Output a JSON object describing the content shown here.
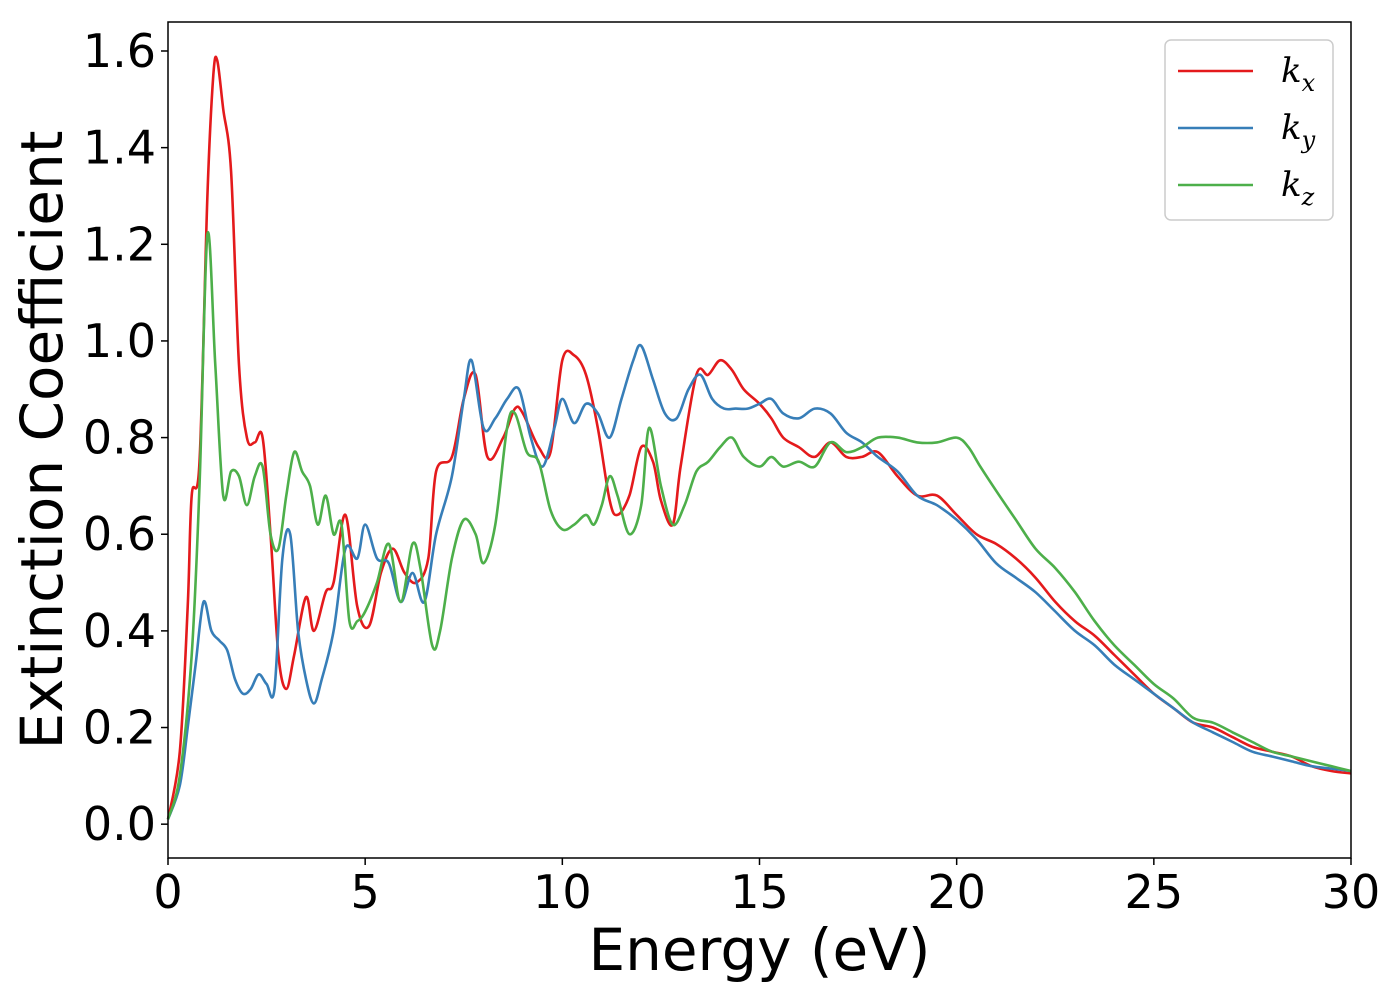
{
  "chart_data": {
    "type": "line",
    "xlabel": "Energy (eV)",
    "ylabel": "Extinction Coefficient",
    "xlim": [
      0,
      30
    ],
    "ylim": [
      -0.07,
      1.66
    ],
    "xticks": [
      0,
      5,
      10,
      15,
      20,
      25,
      30
    ],
    "xtick_labels": [
      "0",
      "5",
      "10",
      "15",
      "20",
      "25",
      "30"
    ],
    "yticks": [
      0.0,
      0.2,
      0.4,
      0.6,
      0.8,
      1.0,
      1.2,
      1.4,
      1.6
    ],
    "ytick_labels": [
      "0.0",
      "0.2",
      "0.4",
      "0.6",
      "0.8",
      "1.0",
      "1.2",
      "1.4",
      "1.6"
    ],
    "grid": false,
    "legend_position": "top-right",
    "series": [
      {
        "name": "kx",
        "label_main": "k",
        "label_sub": "x",
        "color": "#e41a1c",
        "points": [
          [
            0,
            0.01
          ],
          [
            0.3,
            0.15
          ],
          [
            0.5,
            0.45
          ],
          [
            0.6,
            0.68
          ],
          [
            0.8,
            0.75
          ],
          [
            1.0,
            1.3
          ],
          [
            1.15,
            1.55
          ],
          [
            1.25,
            1.58
          ],
          [
            1.4,
            1.48
          ],
          [
            1.6,
            1.35
          ],
          [
            1.8,
            0.95
          ],
          [
            2.0,
            0.8
          ],
          [
            2.2,
            0.79
          ],
          [
            2.4,
            0.8
          ],
          [
            2.6,
            0.6
          ],
          [
            2.8,
            0.35
          ],
          [
            3.0,
            0.28
          ],
          [
            3.2,
            0.35
          ],
          [
            3.5,
            0.47
          ],
          [
            3.7,
            0.4
          ],
          [
            4.0,
            0.48
          ],
          [
            4.2,
            0.5
          ],
          [
            4.5,
            0.64
          ],
          [
            4.8,
            0.45
          ],
          [
            5.1,
            0.41
          ],
          [
            5.4,
            0.52
          ],
          [
            5.7,
            0.57
          ],
          [
            6.0,
            0.52
          ],
          [
            6.3,
            0.5
          ],
          [
            6.6,
            0.55
          ],
          [
            6.8,
            0.73
          ],
          [
            7.2,
            0.76
          ],
          [
            7.5,
            0.88
          ],
          [
            7.8,
            0.93
          ],
          [
            8.1,
            0.76
          ],
          [
            8.5,
            0.8
          ],
          [
            8.8,
            0.86
          ],
          [
            9.0,
            0.85
          ],
          [
            9.4,
            0.78
          ],
          [
            9.7,
            0.77
          ],
          [
            10.0,
            0.96
          ],
          [
            10.3,
            0.97
          ],
          [
            10.6,
            0.93
          ],
          [
            10.9,
            0.82
          ],
          [
            11.2,
            0.67
          ],
          [
            11.4,
            0.64
          ],
          [
            11.7,
            0.68
          ],
          [
            12.0,
            0.78
          ],
          [
            12.3,
            0.75
          ],
          [
            12.5,
            0.67
          ],
          [
            12.8,
            0.62
          ],
          [
            13.0,
            0.74
          ],
          [
            13.4,
            0.93
          ],
          [
            13.7,
            0.93
          ],
          [
            14.0,
            0.96
          ],
          [
            14.3,
            0.94
          ],
          [
            14.6,
            0.9
          ],
          [
            15.0,
            0.87
          ],
          [
            15.3,
            0.84
          ],
          [
            15.6,
            0.8
          ],
          [
            16.0,
            0.78
          ],
          [
            16.4,
            0.76
          ],
          [
            16.8,
            0.79
          ],
          [
            17.2,
            0.76
          ],
          [
            17.6,
            0.76
          ],
          [
            18.0,
            0.77
          ],
          [
            18.5,
            0.72
          ],
          [
            19.0,
            0.68
          ],
          [
            19.5,
            0.68
          ],
          [
            20.0,
            0.64
          ],
          [
            20.5,
            0.6
          ],
          [
            21.0,
            0.58
          ],
          [
            21.5,
            0.55
          ],
          [
            22.0,
            0.51
          ],
          [
            22.5,
            0.46
          ],
          [
            23.0,
            0.42
          ],
          [
            23.5,
            0.39
          ],
          [
            24.0,
            0.35
          ],
          [
            24.5,
            0.31
          ],
          [
            25.0,
            0.27
          ],
          [
            25.5,
            0.24
          ],
          [
            26.0,
            0.21
          ],
          [
            26.5,
            0.2
          ],
          [
            27.0,
            0.18
          ],
          [
            27.5,
            0.16
          ],
          [
            28.0,
            0.15
          ],
          [
            28.5,
            0.14
          ],
          [
            29.0,
            0.12
          ],
          [
            29.5,
            0.11
          ],
          [
            30.0,
            0.105
          ]
        ]
      },
      {
        "name": "ky",
        "label_main": "k",
        "label_sub": "y",
        "color": "#377eb8",
        "points": [
          [
            0,
            0.01
          ],
          [
            0.3,
            0.08
          ],
          [
            0.5,
            0.2
          ],
          [
            0.7,
            0.33
          ],
          [
            0.9,
            0.46
          ],
          [
            1.1,
            0.4
          ],
          [
            1.3,
            0.38
          ],
          [
            1.5,
            0.36
          ],
          [
            1.7,
            0.3
          ],
          [
            1.9,
            0.27
          ],
          [
            2.1,
            0.28
          ],
          [
            2.3,
            0.31
          ],
          [
            2.5,
            0.29
          ],
          [
            2.7,
            0.28
          ],
          [
            2.9,
            0.55
          ],
          [
            3.1,
            0.6
          ],
          [
            3.3,
            0.4
          ],
          [
            3.5,
            0.3
          ],
          [
            3.7,
            0.25
          ],
          [
            3.9,
            0.3
          ],
          [
            4.2,
            0.4
          ],
          [
            4.5,
            0.57
          ],
          [
            4.8,
            0.55
          ],
          [
            5.0,
            0.62
          ],
          [
            5.3,
            0.55
          ],
          [
            5.6,
            0.54
          ],
          [
            5.9,
            0.46
          ],
          [
            6.2,
            0.52
          ],
          [
            6.5,
            0.46
          ],
          [
            6.8,
            0.6
          ],
          [
            7.2,
            0.72
          ],
          [
            7.5,
            0.88
          ],
          [
            7.7,
            0.96
          ],
          [
            8.0,
            0.82
          ],
          [
            8.3,
            0.84
          ],
          [
            8.6,
            0.88
          ],
          [
            8.9,
            0.9
          ],
          [
            9.2,
            0.8
          ],
          [
            9.5,
            0.74
          ],
          [
            9.8,
            0.82
          ],
          [
            10.0,
            0.88
          ],
          [
            10.3,
            0.83
          ],
          [
            10.6,
            0.87
          ],
          [
            10.9,
            0.85
          ],
          [
            11.2,
            0.8
          ],
          [
            11.5,
            0.88
          ],
          [
            11.8,
            0.96
          ],
          [
            12.0,
            0.99
          ],
          [
            12.3,
            0.92
          ],
          [
            12.6,
            0.85
          ],
          [
            12.9,
            0.84
          ],
          [
            13.2,
            0.9
          ],
          [
            13.5,
            0.93
          ],
          [
            13.8,
            0.88
          ],
          [
            14.1,
            0.86
          ],
          [
            14.4,
            0.86
          ],
          [
            14.7,
            0.86
          ],
          [
            15.0,
            0.87
          ],
          [
            15.3,
            0.88
          ],
          [
            15.6,
            0.85
          ],
          [
            16.0,
            0.84
          ],
          [
            16.4,
            0.86
          ],
          [
            16.8,
            0.85
          ],
          [
            17.2,
            0.81
          ],
          [
            17.6,
            0.79
          ],
          [
            18.0,
            0.76
          ],
          [
            18.5,
            0.73
          ],
          [
            19.0,
            0.68
          ],
          [
            19.5,
            0.66
          ],
          [
            20.0,
            0.63
          ],
          [
            20.5,
            0.59
          ],
          [
            21.0,
            0.54
          ],
          [
            21.5,
            0.51
          ],
          [
            22.0,
            0.48
          ],
          [
            22.5,
            0.44
          ],
          [
            23.0,
            0.4
          ],
          [
            23.5,
            0.37
          ],
          [
            24.0,
            0.33
          ],
          [
            24.5,
            0.3
          ],
          [
            25.0,
            0.27
          ],
          [
            25.5,
            0.24
          ],
          [
            26.0,
            0.21
          ],
          [
            26.5,
            0.19
          ],
          [
            27.0,
            0.17
          ],
          [
            27.5,
            0.15
          ],
          [
            28.0,
            0.14
          ],
          [
            28.5,
            0.13
          ],
          [
            29.0,
            0.12
          ],
          [
            29.5,
            0.115
          ],
          [
            30.0,
            0.11
          ]
        ]
      },
      {
        "name": "kz",
        "label_main": "k",
        "label_sub": "z",
        "color": "#4daf4a",
        "points": [
          [
            0,
            0.01
          ],
          [
            0.3,
            0.1
          ],
          [
            0.6,
            0.35
          ],
          [
            0.8,
            0.7
          ],
          [
            1.0,
            1.22
          ],
          [
            1.2,
            0.95
          ],
          [
            1.4,
            0.68
          ],
          [
            1.6,
            0.73
          ],
          [
            1.8,
            0.72
          ],
          [
            2.0,
            0.66
          ],
          [
            2.2,
            0.72
          ],
          [
            2.4,
            0.74
          ],
          [
            2.6,
            0.6
          ],
          [
            2.8,
            0.57
          ],
          [
            3.0,
            0.68
          ],
          [
            3.2,
            0.77
          ],
          [
            3.4,
            0.73
          ],
          [
            3.6,
            0.7
          ],
          [
            3.8,
            0.62
          ],
          [
            4.0,
            0.68
          ],
          [
            4.2,
            0.6
          ],
          [
            4.4,
            0.62
          ],
          [
            4.6,
            0.42
          ],
          [
            4.8,
            0.42
          ],
          [
            5.0,
            0.44
          ],
          [
            5.3,
            0.5
          ],
          [
            5.6,
            0.58
          ],
          [
            5.9,
            0.46
          ],
          [
            6.2,
            0.58
          ],
          [
            6.4,
            0.53
          ],
          [
            6.7,
            0.37
          ],
          [
            6.9,
            0.4
          ],
          [
            7.2,
            0.55
          ],
          [
            7.5,
            0.63
          ],
          [
            7.8,
            0.6
          ],
          [
            8.0,
            0.54
          ],
          [
            8.3,
            0.62
          ],
          [
            8.6,
            0.82
          ],
          [
            8.8,
            0.85
          ],
          [
            9.1,
            0.77
          ],
          [
            9.4,
            0.75
          ],
          [
            9.7,
            0.65
          ],
          [
            10.0,
            0.61
          ],
          [
            10.3,
            0.62
          ],
          [
            10.6,
            0.64
          ],
          [
            10.8,
            0.62
          ],
          [
            11.0,
            0.66
          ],
          [
            11.2,
            0.72
          ],
          [
            11.4,
            0.68
          ],
          [
            11.7,
            0.6
          ],
          [
            12.0,
            0.66
          ],
          [
            12.2,
            0.82
          ],
          [
            12.5,
            0.7
          ],
          [
            12.8,
            0.62
          ],
          [
            13.1,
            0.66
          ],
          [
            13.4,
            0.73
          ],
          [
            13.7,
            0.75
          ],
          [
            14.0,
            0.78
          ],
          [
            14.3,
            0.8
          ],
          [
            14.6,
            0.76
          ],
          [
            15.0,
            0.74
          ],
          [
            15.3,
            0.76
          ],
          [
            15.6,
            0.74
          ],
          [
            16.0,
            0.75
          ],
          [
            16.4,
            0.74
          ],
          [
            16.8,
            0.79
          ],
          [
            17.2,
            0.77
          ],
          [
            17.6,
            0.78
          ],
          [
            18.0,
            0.8
          ],
          [
            18.5,
            0.8
          ],
          [
            19.0,
            0.79
          ],
          [
            19.5,
            0.79
          ],
          [
            20.0,
            0.8
          ],
          [
            20.3,
            0.78
          ],
          [
            20.6,
            0.74
          ],
          [
            21.0,
            0.69
          ],
          [
            21.5,
            0.63
          ],
          [
            22.0,
            0.57
          ],
          [
            22.5,
            0.53
          ],
          [
            23.0,
            0.48
          ],
          [
            23.5,
            0.42
          ],
          [
            24.0,
            0.37
          ],
          [
            24.5,
            0.33
          ],
          [
            25.0,
            0.29
          ],
          [
            25.5,
            0.26
          ],
          [
            26.0,
            0.22
          ],
          [
            26.5,
            0.21
          ],
          [
            27.0,
            0.19
          ],
          [
            27.5,
            0.17
          ],
          [
            28.0,
            0.15
          ],
          [
            28.5,
            0.14
          ],
          [
            29.0,
            0.13
          ],
          [
            29.5,
            0.12
          ],
          [
            30.0,
            0.11
          ]
        ]
      }
    ]
  }
}
